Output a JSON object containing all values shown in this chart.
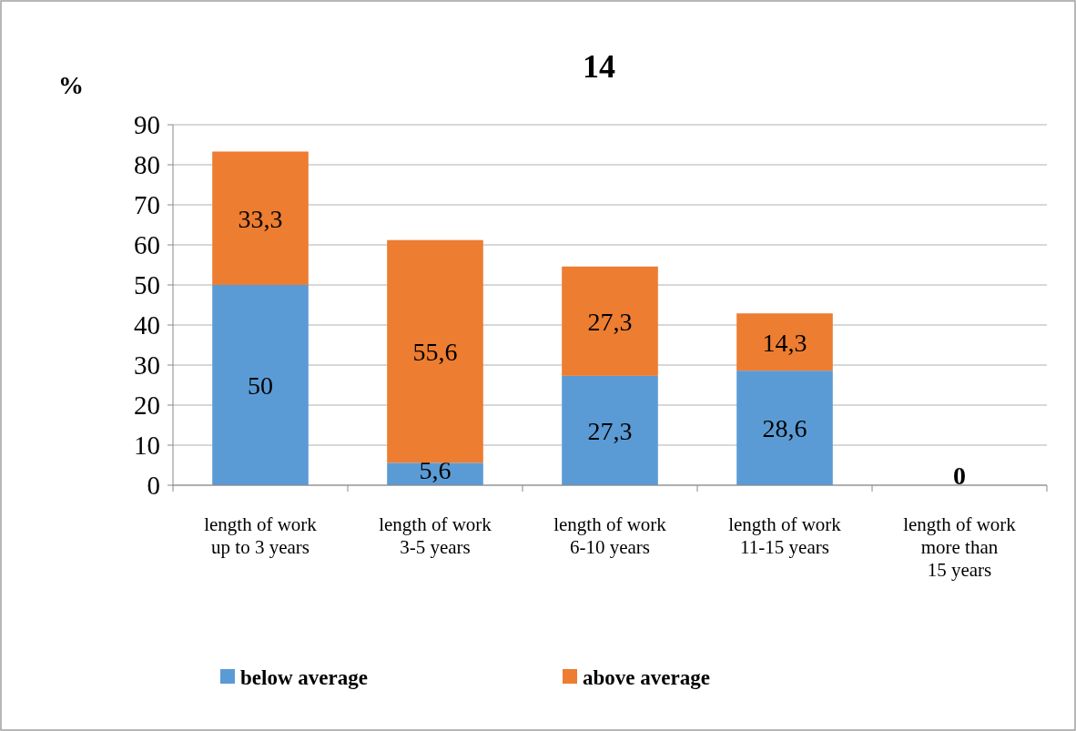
{
  "chart_data": {
    "type": "bar",
    "title": "14",
    "ylabel": "%",
    "stacked": true,
    "categories": [
      "length of work\nup to 3 years",
      "length of work\n3-5 years",
      "length of work\n6-10 years",
      "length of work\n11-15 years",
      "length of work\nmore than\n15 years"
    ],
    "series": [
      {
        "name": "below average",
        "color": "#5b9bd5",
        "values": [
          50,
          5.6,
          27.3,
          28.6,
          0
        ],
        "value_labels": [
          "50",
          "5,6",
          "27,3",
          "28,6",
          null
        ]
      },
      {
        "name": "above average",
        "color": "#ed7d31",
        "values": [
          33.3,
          55.6,
          27.3,
          14.3,
          0
        ],
        "value_labels": [
          "33,3",
          "55,6",
          "27,3",
          "14,3",
          "0"
        ]
      }
    ],
    "ylim": [
      0,
      90
    ],
    "yticks": [
      0,
      10,
      20,
      30,
      40,
      50,
      60,
      70,
      80,
      90
    ],
    "grid": "y",
    "legend": "bottom"
  }
}
